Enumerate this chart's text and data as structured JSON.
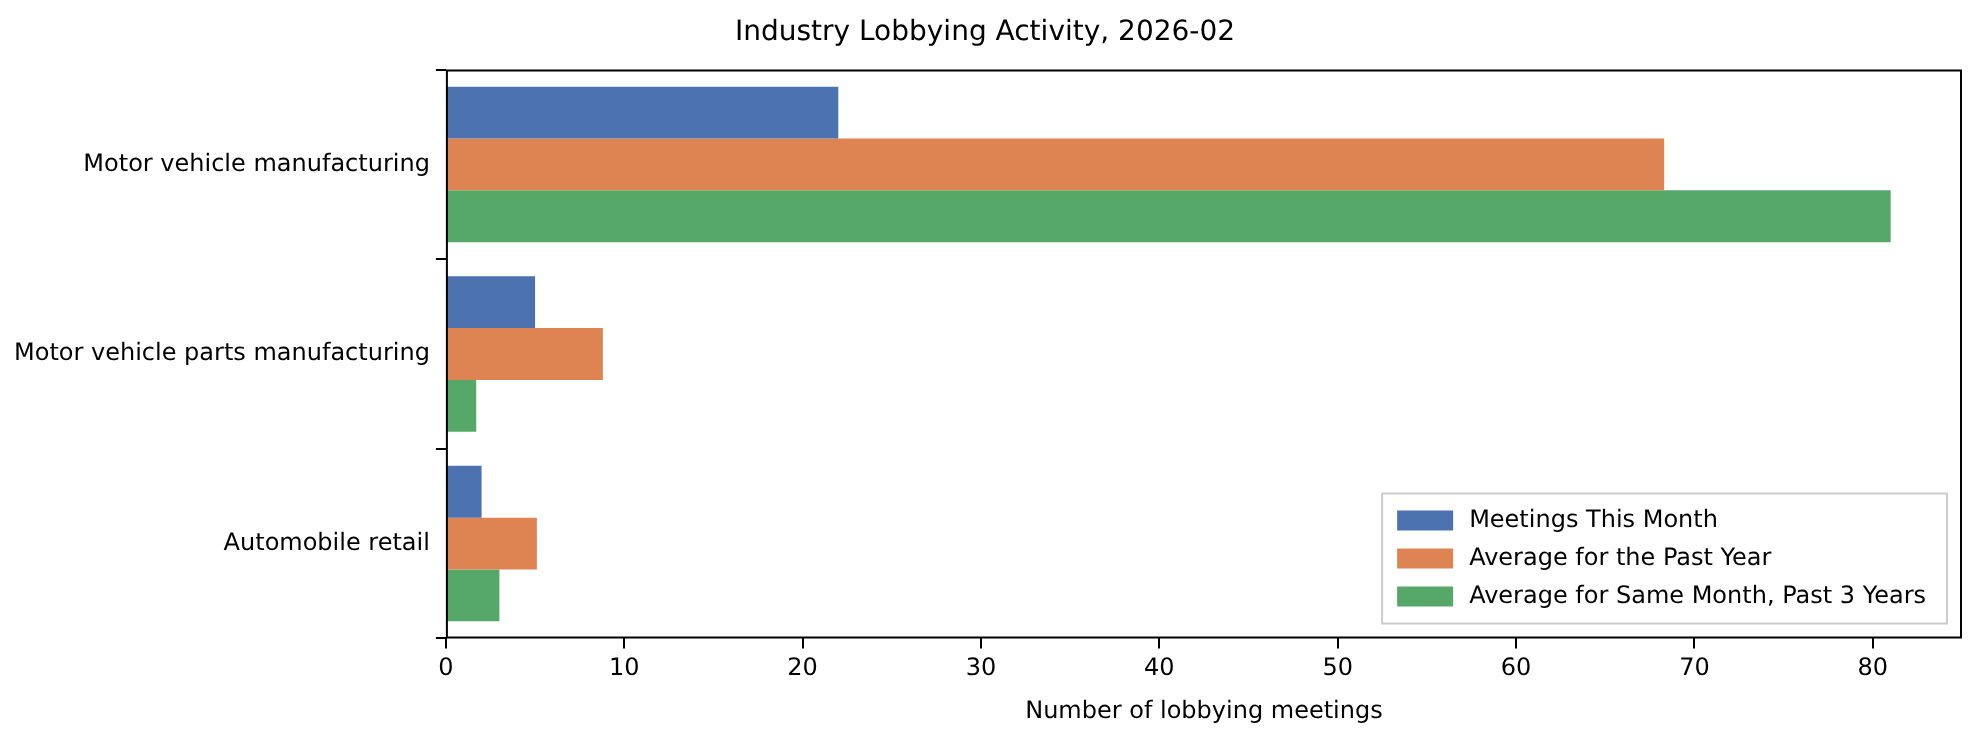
{
  "chart_data": {
    "type": "bar",
    "orientation": "horizontal",
    "title": "Industry Lobbying Activity, 2026-02",
    "xlabel": "Number of lobbying meetings",
    "categories": [
      "Motor vehicle manufacturing",
      "Motor vehicle parts manufacturing",
      "Automobile retail"
    ],
    "series": [
      {
        "name": "Meetings This Month",
        "color": "#4c72b0",
        "values": [
          22,
          5,
          2
        ]
      },
      {
        "name": "Average for the Past Year",
        "color": "#dd8452",
        "values": [
          68.3,
          8.8,
          5.1
        ]
      },
      {
        "name": "Average for Same Month, Past 3 Years",
        "color": "#55a868",
        "values": [
          81,
          1.7,
          3
        ]
      }
    ],
    "xlim": [
      0,
      85
    ],
    "xticks": [
      0,
      10,
      20,
      30,
      40,
      50,
      60,
      70,
      80
    ],
    "legend": "bottom right"
  }
}
